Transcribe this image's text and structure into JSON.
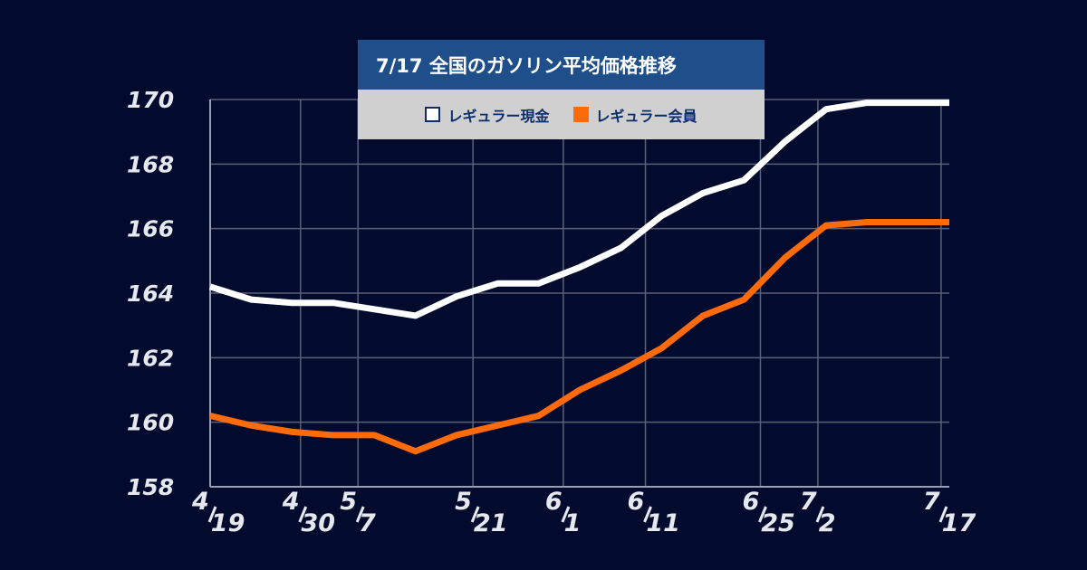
{
  "chart_data": {
    "type": "line",
    "title": "7/17  全国のガソリン平均価格推移",
    "xlabel": "",
    "ylabel": "",
    "x": [
      0,
      5,
      10,
      15,
      20,
      25,
      30,
      35,
      40,
      45,
      50,
      55,
      60,
      65,
      70,
      75,
      80,
      85,
      90
    ],
    "x_tick_positions": [
      0,
      11,
      18,
      32,
      43,
      53,
      67,
      74,
      89
    ],
    "x_tick_labels": [
      {
        "num": "4",
        "den": "19"
      },
      {
        "num": "4",
        "den": "30"
      },
      {
        "num": "5",
        "den": "7"
      },
      {
        "num": "5",
        "den": "21"
      },
      {
        "num": "6",
        "den": "1"
      },
      {
        "num": "6",
        "den": "11"
      },
      {
        "num": "6",
        "den": "25"
      },
      {
        "num": "7",
        "den": "2"
      },
      {
        "num": "7",
        "den": "17"
      }
    ],
    "ylim": [
      158,
      170
    ],
    "y_ticks": [
      158,
      160,
      162,
      164,
      166,
      168,
      170
    ],
    "grid": true,
    "legend_position": "top-center",
    "series": [
      {
        "name": "レギュラー現金",
        "color": "#ffffff",
        "values": [
          164.2,
          163.8,
          163.7,
          163.7,
          163.5,
          163.3,
          163.9,
          164.3,
          164.3,
          164.8,
          165.4,
          166.4,
          167.1,
          167.5,
          168.7,
          169.7,
          169.9,
          169.9,
          169.9
        ]
      },
      {
        "name": "レギュラー会員",
        "color": "#ff6a0a",
        "values": [
          160.2,
          159.9,
          159.7,
          159.6,
          159.6,
          159.1,
          159.6,
          159.9,
          160.2,
          161.0,
          161.6,
          162.3,
          163.3,
          163.8,
          165.1,
          166.1,
          166.2,
          166.2,
          166.2
        ]
      }
    ]
  }
}
